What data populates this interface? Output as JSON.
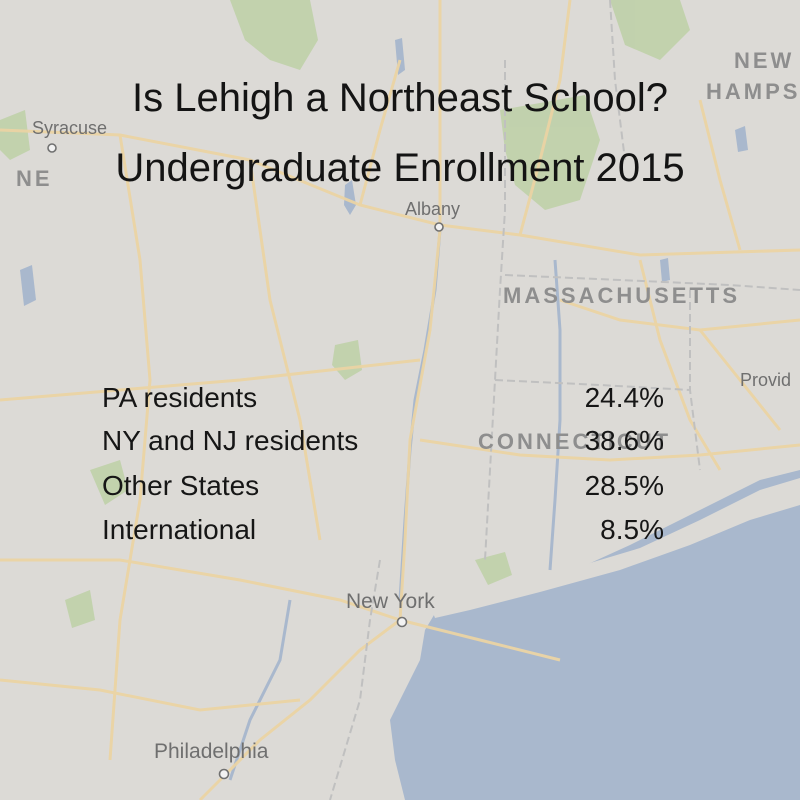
{
  "title": {
    "line1": "Is Lehigh a Northeast School?",
    "line2": "Undergraduate Enrollment 2015"
  },
  "map": {
    "cities": [
      {
        "name": "Syracuse"
      },
      {
        "name": "Albany"
      },
      {
        "name": "New York"
      },
      {
        "name": "Philadelphia"
      },
      {
        "name": "Provid"
      }
    ],
    "states": [
      {
        "name": "MASSACHUSETTS"
      },
      {
        "name": "CONNECTICUT"
      },
      {
        "name": "NEW"
      },
      {
        "name": "HAMPSHI"
      },
      {
        "name": "NE"
      }
    ],
    "colors": {
      "land": "#dcdad6",
      "water": "#a9b8cd",
      "roads": "#e9d4a8",
      "parks": "#b9cfa0"
    }
  },
  "enrollment": [
    {
      "label": "PA residents",
      "value": "24.4%"
    },
    {
      "label": "NY and NJ residents",
      "value": "38.6%"
    },
    {
      "label": "Other States",
      "value": "28.5%"
    },
    {
      "label": "International",
      "value": "8.5%"
    }
  ]
}
